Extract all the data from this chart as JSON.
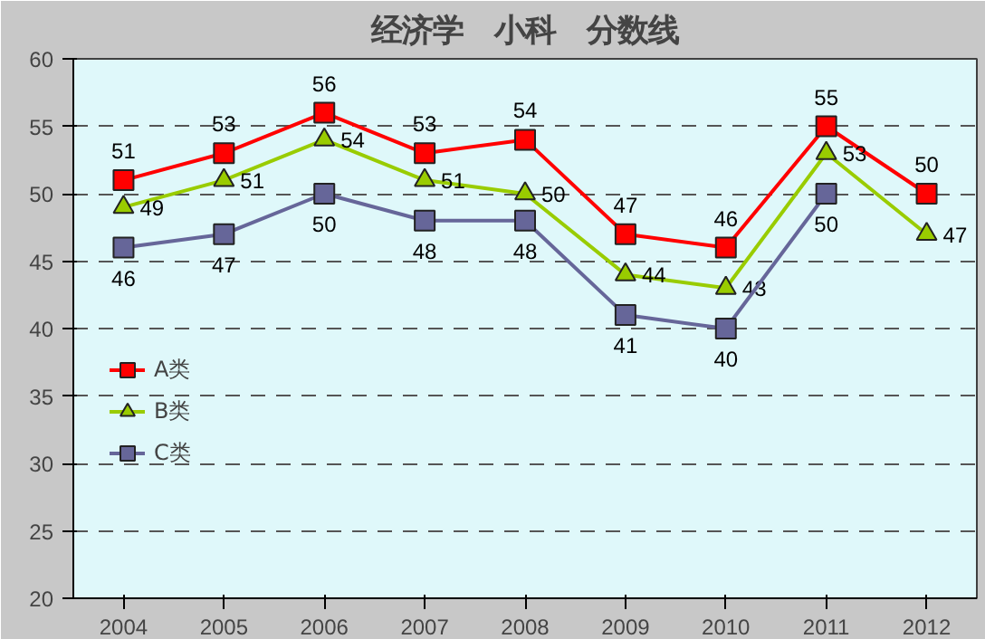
{
  "chart_data": {
    "type": "line",
    "title": "经济学　小科　分数线",
    "categories": [
      "2004",
      "2005",
      "2006",
      "2007",
      "2008",
      "2009",
      "2010",
      "2011",
      "2012"
    ],
    "series": [
      {
        "name": "A类",
        "color": "#ff0000",
        "marker": "square",
        "values": [
          51,
          53,
          56,
          53,
          54,
          47,
          46,
          55,
          50
        ]
      },
      {
        "name": "B类",
        "color": "#99cc00",
        "marker": "triangle",
        "values": [
          49,
          51,
          54,
          51,
          50,
          44,
          43,
          53,
          47
        ]
      },
      {
        "name": "C类",
        "color": "#666699",
        "marker": "square",
        "values": [
          46,
          47,
          50,
          48,
          48,
          41,
          40,
          50,
          null
        ]
      }
    ],
    "ylim": [
      20,
      60
    ],
    "yticks": [
      20,
      25,
      30,
      35,
      40,
      45,
      50,
      55,
      60
    ],
    "grid": "y",
    "legend": "left",
    "data_labels": true
  }
}
